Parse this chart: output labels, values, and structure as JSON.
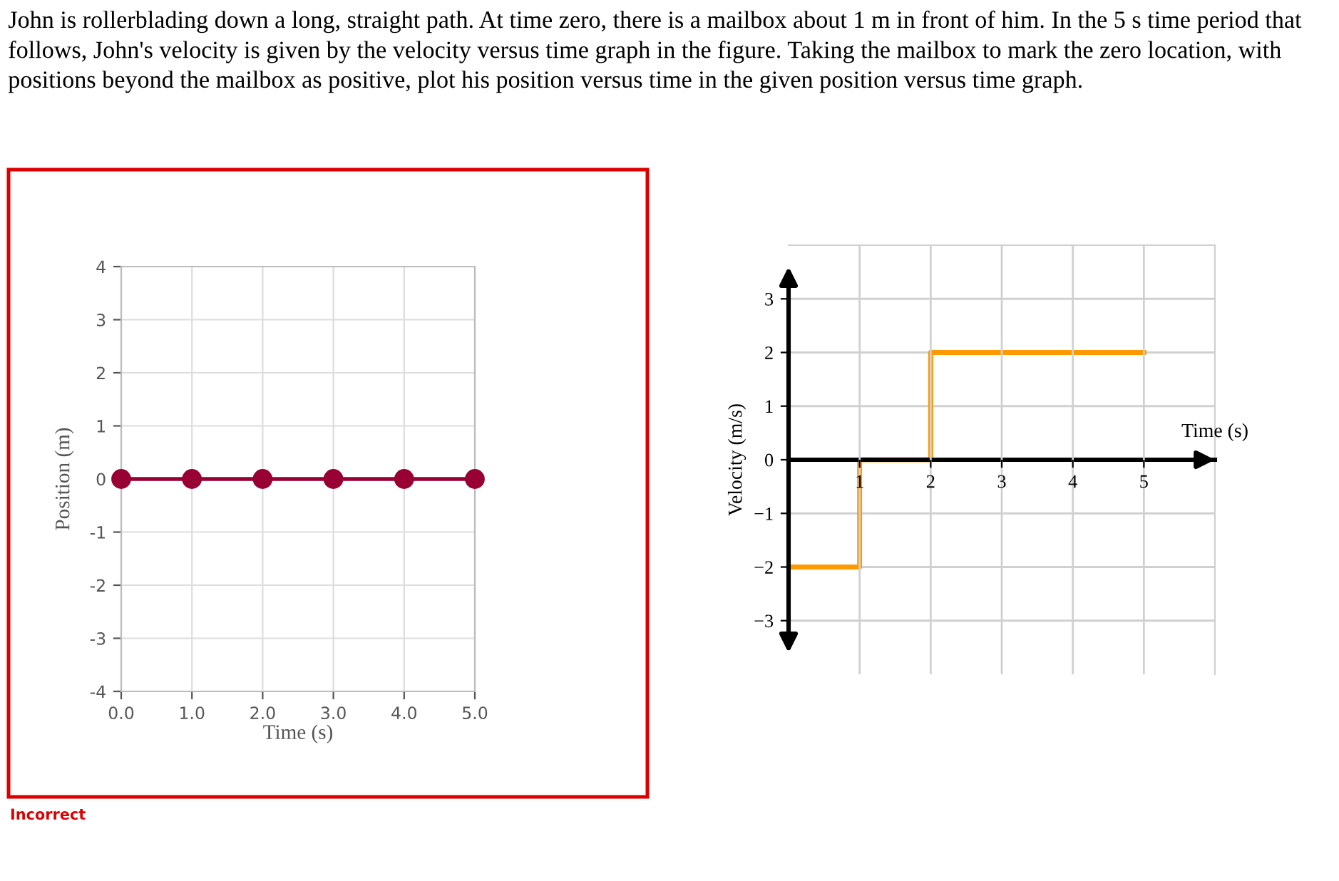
{
  "chart_data": [
    {
      "type": "line",
      "xlabel": "Time (s)",
      "ylabel": "Position (m)",
      "annotations": [
        "John is rollerblading down a long, straight path. At time zero, there is a mailbox about 1 m in front of him. In the 5 s time period that follows, John's velocity is given by the velocity versus time graph in the figure. Taking the mailbox to mark the zero location, with positions beyond the mailbox as positive, plot his position versus time in the given position versus time graph.",
        "Incorrect"
      ],
      "x": [
        0,
        1,
        2,
        3,
        4,
        5
      ],
      "series": [
        {
          "color": "#990033",
          "values": [
            0,
            0,
            0,
            0,
            0,
            0
          ]
        }
      ],
      "marker": "circle",
      "xlim": [
        0,
        5
      ],
      "ylim": [
        -4,
        4
      ],
      "xticks": [
        {
          "value": 0,
          "label": "0.0"
        },
        {
          "value": 1,
          "label": "1.0"
        },
        {
          "value": 2,
          "label": "2.0"
        },
        {
          "value": 3,
          "label": "3.0"
        },
        {
          "value": 4,
          "label": "4.0"
        },
        {
          "value": 5,
          "label": "5.0"
        }
      ],
      "yticks": [
        -4,
        -3,
        -2,
        -1,
        0,
        1,
        2,
        3,
        4
      ],
      "grid": true
    },
    {
      "type": "step",
      "xlabel": "Time (s)",
      "ylabel": "Velocity (m/s)",
      "x": [
        0,
        1,
        2,
        5
      ],
      "series": [
        {
          "color": "#ff9900",
          "values": [
            -2,
            0,
            2,
            2
          ]
        }
      ],
      "xlim": [
        0,
        6
      ],
      "ylim": [
        -4,
        4
      ],
      "xticks": [
        1,
        2,
        3,
        4,
        5
      ],
      "yticks": [
        {
          "value": -3,
          "label": "−3"
        },
        {
          "value": -2,
          "label": "−2"
        },
        {
          "value": -1,
          "label": "−1"
        },
        0,
        1,
        2,
        3
      ],
      "grid": true
    }
  ]
}
